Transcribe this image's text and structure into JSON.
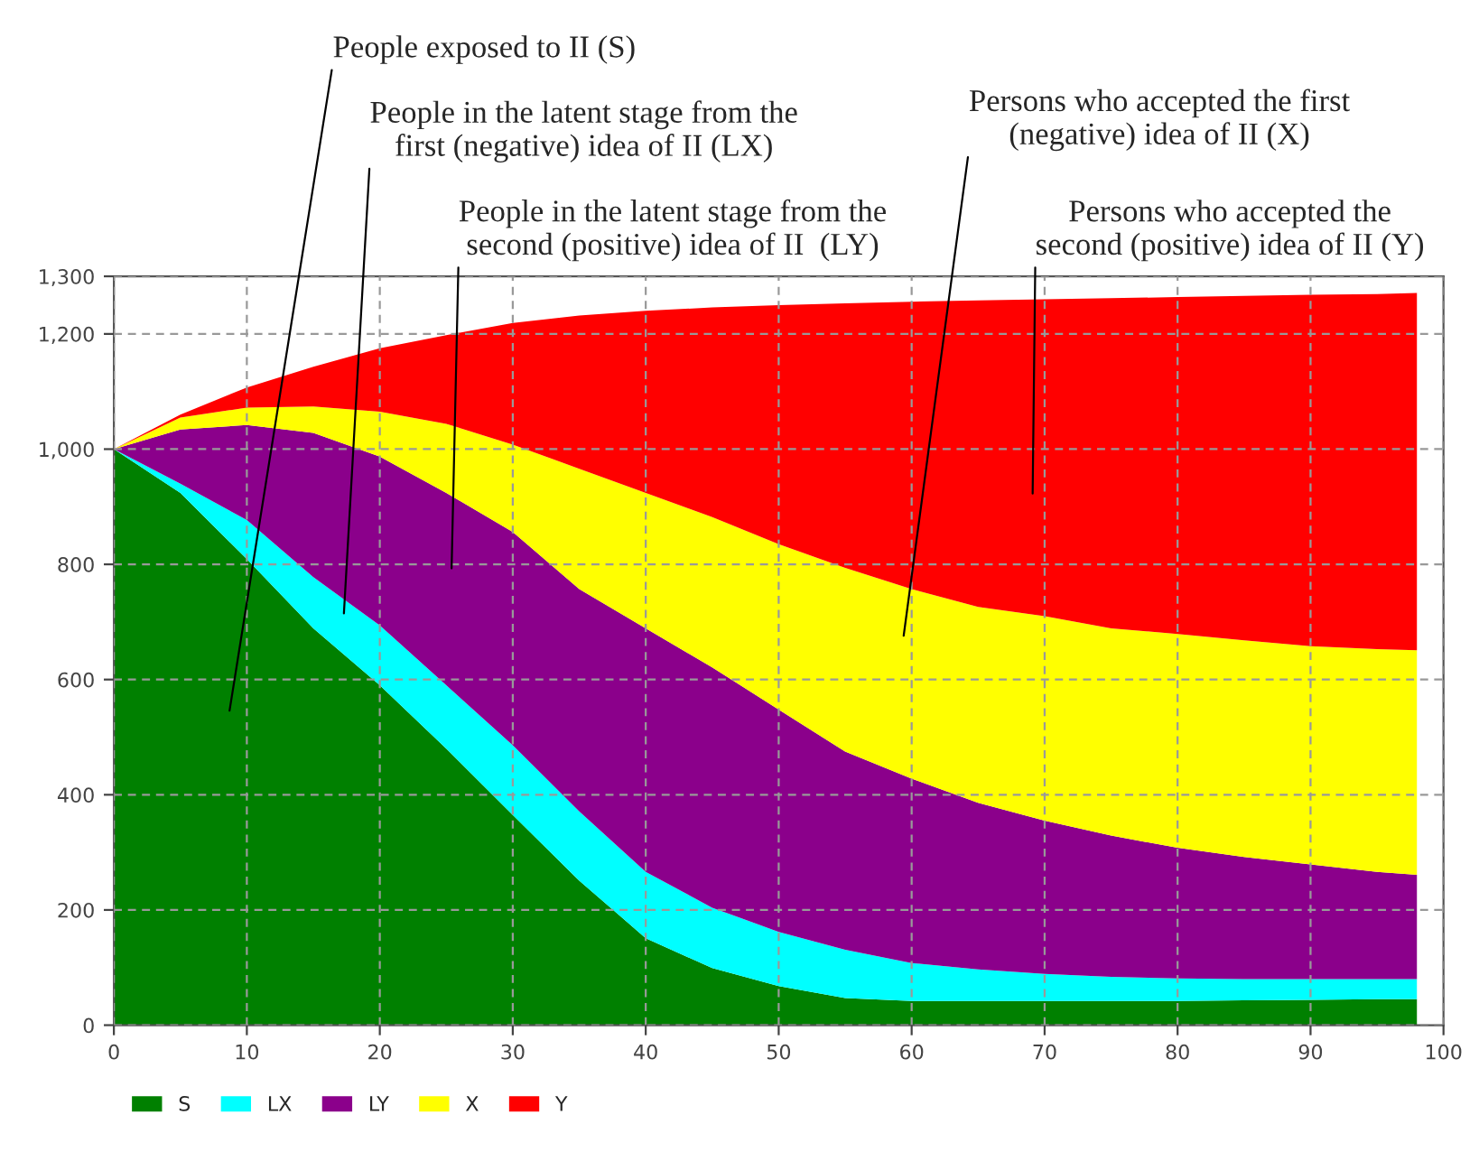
{
  "chart_data": {
    "type": "area",
    "stacked": true,
    "x": [
      0,
      5,
      10,
      15,
      20,
      25,
      30,
      35,
      40,
      45,
      50,
      55,
      60,
      65,
      70,
      75,
      80,
      85,
      90,
      95,
      98
    ],
    "series": [
      {
        "name": "S",
        "color": "#008000",
        "values": [
          1000,
          924,
          809,
          689,
          590,
          480,
          365,
          251,
          151,
          99,
          68,
          47,
          42,
          42,
          42,
          42,
          42,
          43,
          44,
          45,
          45
        ]
      },
      {
        "name": "LX",
        "color": "#00ffff",
        "values": [
          0,
          16,
          68,
          89,
          104,
          110,
          121,
          120,
          115,
          105,
          94,
          84,
          66,
          55,
          47,
          42,
          39,
          37,
          36,
          35,
          35
        ]
      },
      {
        "name": "LY",
        "color": "#8b008b",
        "values": [
          0,
          94,
          165,
          250,
          293,
          334,
          370,
          386,
          423,
          417,
          386,
          344,
          320,
          289,
          266,
          245,
          227,
          212,
          199,
          186,
          181
        ]
      },
      {
        "name": "X",
        "color": "#ffff00",
        "values": [
          0,
          21,
          30,
          46,
          78,
          120,
          152,
          209,
          235,
          261,
          287,
          319,
          329,
          340,
          355,
          360,
          371,
          376,
          379,
          387,
          390
        ]
      },
      {
        "name": "Y",
        "color": "#ff0000",
        "values": [
          0,
          5,
          35,
          69,
          110,
          154,
          211,
          266,
          316,
          364,
          415,
          459,
          499,
          532,
          550,
          573,
          585,
          598,
          610,
          616,
          620
        ]
      }
    ],
    "xlim": [
      0,
      100
    ],
    "xticks": [
      0,
      10,
      20,
      30,
      40,
      50,
      60,
      70,
      80,
      90,
      100
    ],
    "ylim": [
      0,
      1300
    ],
    "yticks": [
      {
        "value": 0,
        "label": "0"
      },
      {
        "value": 200,
        "label": "200"
      },
      {
        "value": 400,
        "label": "400"
      },
      {
        "value": 600,
        "label": "600"
      },
      {
        "value": 800,
        "label": "800"
      },
      {
        "value": 1000,
        "label": "1,000"
      },
      {
        "value": 1200,
        "label": "1,200"
      },
      {
        "value": 1300,
        "label": "1,300"
      }
    ],
    "grid": true,
    "legend": "bottom left",
    "annotations": [
      "People exposed to II (S)",
      "People in the latent stage from the\nfirst (negative) idea of II (LX)",
      "People in the latent stage from the\nsecond (positive) idea of II  (LY)",
      "Persons who accepted the first\n(negative) idea of II (X)",
      "Persons who accepted the\nsecond (positive) idea of II (Y)"
    ]
  }
}
